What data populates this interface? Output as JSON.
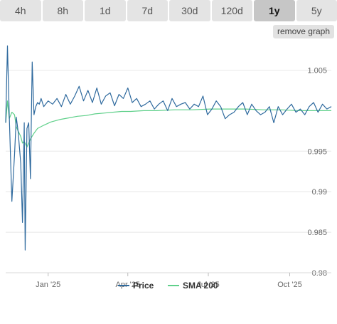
{
  "range_tabs": [
    {
      "label": "4h",
      "active": false
    },
    {
      "label": "8h",
      "active": false
    },
    {
      "label": "1d",
      "active": false
    },
    {
      "label": "7d",
      "active": false
    },
    {
      "label": "30d",
      "active": false
    },
    {
      "label": "120d",
      "active": false
    },
    {
      "label": "1y",
      "active": true
    },
    {
      "label": "5y",
      "active": false
    }
  ],
  "remove_graph_label": "remove graph",
  "colors": {
    "price": "#2f6a9e",
    "sma": "#5fd08a",
    "grid": "#e8e8e8",
    "baseline": "#d8d8d8"
  },
  "chart_data": {
    "type": "line",
    "x_axis": {
      "type": "date",
      "range": [
        "2024-11-14",
        "2025-11-17"
      ],
      "ticks": [
        {
          "date": "2025-01-01",
          "label": "Jan '25"
        },
        {
          "date": "2025-04-01",
          "label": "Apr '25"
        },
        {
          "date": "2025-07-01",
          "label": "Jul '25"
        },
        {
          "date": "2025-10-01",
          "label": "Oct '25"
        }
      ]
    },
    "y_axis": {
      "range": [
        0.98,
        1.0075
      ],
      "ticks": [
        0.98,
        0.985,
        0.99,
        0.995,
        1.005
      ],
      "tick_labels": [
        "0.98",
        "0.985",
        "0.99",
        "0.995",
        "1.005"
      ],
      "grid": true
    },
    "legend": {
      "position": "bottom-center"
    },
    "series": [
      {
        "name": "Price",
        "x": [
          "2024-11-14",
          "2024-11-16",
          "2024-11-18",
          "2024-11-21",
          "2024-11-24",
          "2024-11-26",
          "2024-11-28",
          "2024-12-01",
          "2024-12-03",
          "2024-12-05",
          "2024-12-06",
          "2024-12-08",
          "2024-12-10",
          "2024-12-12",
          "2024-12-14",
          "2024-12-16",
          "2024-12-18",
          "2024-12-20",
          "2024-12-22",
          "2024-12-24",
          "2024-12-27",
          "2025-01-01",
          "2025-01-06",
          "2025-01-11",
          "2025-01-16",
          "2025-01-21",
          "2025-01-26",
          "2025-01-31",
          "2025-02-05",
          "2025-02-10",
          "2025-02-15",
          "2025-02-20",
          "2025-02-25",
          "2025-03-02",
          "2025-03-07",
          "2025-03-12",
          "2025-03-17",
          "2025-03-22",
          "2025-03-27",
          "2025-04-01",
          "2025-04-06",
          "2025-04-11",
          "2025-04-16",
          "2025-04-21",
          "2025-04-26",
          "2025-05-01",
          "2025-05-06",
          "2025-05-11",
          "2025-05-16",
          "2025-05-21",
          "2025-05-26",
          "2025-05-31",
          "2025-06-05",
          "2025-06-10",
          "2025-06-15",
          "2025-06-20",
          "2025-06-25",
          "2025-06-30",
          "2025-07-05",
          "2025-07-10",
          "2025-07-15",
          "2025-07-20",
          "2025-07-25",
          "2025-07-30",
          "2025-08-04",
          "2025-08-09",
          "2025-08-14",
          "2025-08-19",
          "2025-08-24",
          "2025-08-29",
          "2025-09-03",
          "2025-09-08",
          "2025-09-13",
          "2025-09-18",
          "2025-09-23",
          "2025-09-28",
          "2025-10-03",
          "2025-10-08",
          "2025-10-13",
          "2025-10-18",
          "2025-10-23",
          "2025-10-28",
          "2025-11-02",
          "2025-11-07",
          "2025-11-12",
          "2025-11-17"
        ],
        "y": [
          0.9985,
          1.008,
          0.9995,
          0.9888,
          0.9945,
          0.9992,
          0.9975,
          0.9935,
          0.9862,
          0.9985,
          0.9828,
          0.9978,
          0.9985,
          0.9916,
          1.006,
          0.9995,
          1.0005,
          1.001,
          1.0008,
          1.0015,
          1.0005,
          1.0012,
          1.0008,
          1.0015,
          1.0005,
          1.002,
          1.0008,
          1.0018,
          1.003,
          1.0012,
          1.0025,
          1.001,
          1.0028,
          1.0008,
          1.0018,
          1.0022,
          1.0006,
          1.002,
          1.0015,
          1.0028,
          1.001,
          1.0015,
          1.0005,
          1.0008,
          1.0012,
          1.0002,
          1.0008,
          1.0012,
          1.0,
          1.0015,
          1.0005,
          1.0008,
          1.001,
          1.0002,
          1.0008,
          1.0005,
          1.0018,
          0.9995,
          1.0002,
          1.0012,
          1.0005,
          0.999,
          0.9995,
          0.9998,
          1.0005,
          1.001,
          0.9995,
          1.0008,
          1.0,
          0.9995,
          0.9998,
          1.0005,
          0.9985,
          1.0005,
          0.9995,
          1.0002,
          1.0008,
          0.9998,
          1.0002,
          0.9995,
          1.0005,
          1.001,
          0.9998,
          1.0008,
          1.0002,
          1.0005
        ]
      },
      {
        "name": "SMA 200",
        "x": [
          "2024-11-14",
          "2024-11-16",
          "2024-11-18",
          "2024-11-21",
          "2024-11-24",
          "2024-11-26",
          "2024-11-28",
          "2024-12-01",
          "2024-12-03",
          "2024-12-05",
          "2024-12-08",
          "2024-12-12",
          "2024-12-16",
          "2024-12-20",
          "2024-12-27",
          "2025-01-04",
          "2025-01-14",
          "2025-01-24",
          "2025-02-03",
          "2025-02-13",
          "2025-02-23",
          "2025-03-05",
          "2025-03-15",
          "2025-03-25",
          "2025-04-04",
          "2025-04-19",
          "2025-05-04",
          "2025-05-24",
          "2025-06-13",
          "2025-07-03",
          "2025-07-23",
          "2025-08-12",
          "2025-09-01",
          "2025-09-21",
          "2025-10-11",
          "2025-10-31",
          "2025-11-17"
        ],
        "y": [
          0.9985,
          1.0012,
          0.999,
          0.9998,
          0.9995,
          0.998,
          0.9975,
          0.9968,
          0.996,
          0.9962,
          0.9955,
          0.9965,
          0.9972,
          0.9978,
          0.9982,
          0.9986,
          0.9989,
          0.9991,
          0.9993,
          0.9994,
          0.9996,
          0.9997,
          0.9998,
          0.9999,
          0.9999,
          1.0,
          1.0,
          1.0001,
          1.0001,
          1.0002,
          1.0002,
          1.0002,
          1.0001,
          1.0001,
          1.0,
          1.0,
          1.0
        ]
      }
    ]
  }
}
